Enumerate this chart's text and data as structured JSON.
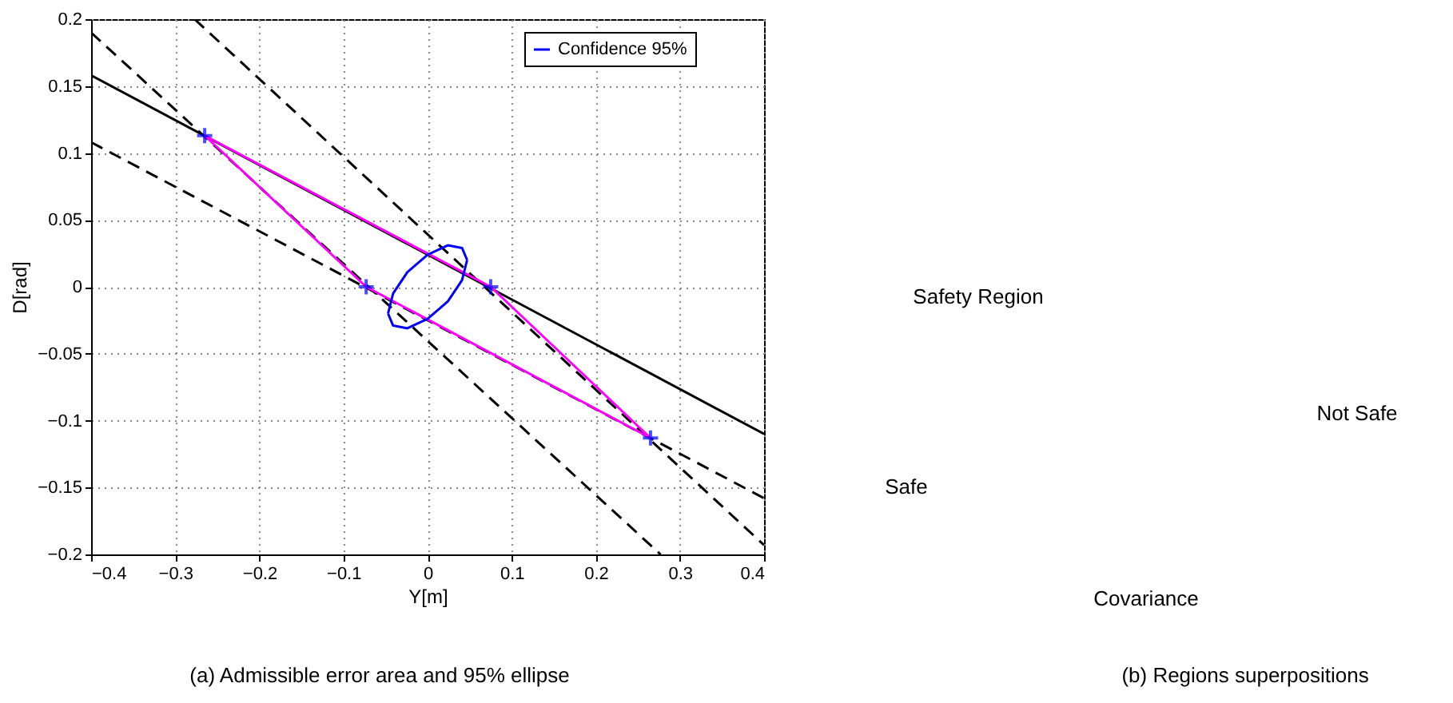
{
  "chart_data": [
    {
      "type": "line",
      "xlabel": "Y[m]",
      "ylabel": "D[rad]",
      "xlim": [
        -0.4,
        0.4
      ],
      "ylim": [
        -0.2,
        0.2
      ],
      "xticks": [
        -0.4,
        -0.3,
        -0.2,
        -0.1,
        0,
        0.1,
        0.2,
        0.3,
        0.4
      ],
      "yticks": [
        -0.2,
        -0.15,
        -0.1,
        -0.05,
        0,
        0.05,
        0.1,
        0.15,
        0.2
      ],
      "grid": true,
      "legend": "top right",
      "series": [
        {
          "color": "#000000",
          "line_style": "solid",
          "x": [
            -0.4,
            0.4
          ],
          "values": [
            0.158,
            -0.11
          ]
        },
        {
          "color": "#000000",
          "line_style": "dashed",
          "x": [
            -0.4,
            0.4
          ],
          "values": [
            0.108,
            -0.158
          ]
        },
        {
          "color": "#000000",
          "line_style": "dashed",
          "x": [
            -0.4,
            0.277
          ],
          "values": [
            0.19,
            -0.2
          ]
        },
        {
          "color": "#000000",
          "line_style": "dashed",
          "x": [
            -0.277,
            0.4
          ],
          "values": [
            0.2,
            -0.193
          ]
        },
        {
          "color": "#ff00ff",
          "line_style": "solid",
          "x": [
            -0.265,
            0.075,
            0.265
          ],
          "values": [
            0.113,
            0,
            -0.113
          ]
        },
        {
          "color": "#ff00ff",
          "line_style": "solid",
          "x": [
            0.265,
            -0.073,
            -0.265
          ],
          "values": [
            -0.113,
            0,
            0.113
          ]
        },
        {
          "type": "scatter",
          "color": "#0000ff",
          "marker": "cross",
          "x": [
            -0.265,
            0.075,
            0.265,
            -0.073
          ],
          "values": [
            0.113,
            0,
            -0.113,
            0
          ]
        },
        {
          "name": "Confidence 95%",
          "color": "#0000ff",
          "line_style": "solid",
          "x": [
            0.047,
            0.041,
            0.024,
            0,
            -0.024,
            -0.041,
            -0.047
          ],
          "values": [
            0.02,
            0.029,
            0.031,
            0.024,
            0.011,
            -0.005,
            -0.02
          ]
        },
        {
          "color": "#0000ff",
          "line_style": "solid",
          "x": [
            -0.047,
            -0.041,
            -0.024,
            0,
            0.024,
            0.041,
            0.047
          ],
          "values": [
            -0.02,
            -0.029,
            -0.031,
            -0.024,
            -0.011,
            0.005,
            0.02
          ]
        }
      ],
      "annotations": [
        "(a)  Admissible error area and 95% ellipse"
      ]
    },
    {
      "type": "other",
      "annotations": [
        "Safety Region",
        "Not Safe",
        "Safe",
        "Covariance",
        "(b)  Regions superpositions"
      ]
    }
  ]
}
